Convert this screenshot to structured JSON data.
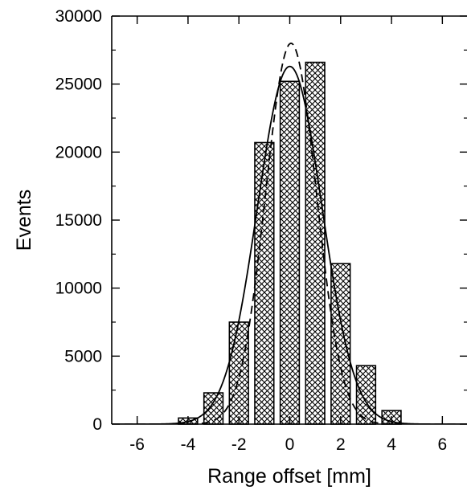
{
  "chart_data": {
    "type": "bar",
    "title": "",
    "xlabel": "Range offset [mm]",
    "ylabel": "Events",
    "xlim": [
      -7,
      7
    ],
    "ylim": [
      0,
      30000
    ],
    "xticks": [
      -6,
      -4,
      -2,
      0,
      2,
      4,
      6
    ],
    "xtick_labels": [
      "-6",
      "-4",
      "-2",
      "0",
      "2",
      "4",
      "6"
    ],
    "yticks": [
      0,
      5000,
      10000,
      15000,
      20000,
      25000,
      30000
    ],
    "ytick_labels": [
      "0",
      "5000",
      "10000",
      "15000",
      "20000",
      "25000",
      "30000"
    ],
    "bar_width": 0.75,
    "bars": {
      "x": [
        -4,
        -3,
        -2,
        -1,
        0,
        1,
        2,
        3,
        4
      ],
      "values": [
        450,
        2300,
        7500,
        20700,
        25200,
        26600,
        11800,
        4300,
        1000
      ],
      "fill": "crosshatch"
    },
    "curves": [
      {
        "style": "solid",
        "amplitude": 26300,
        "mean": 0.0,
        "sigma": 1.27
      },
      {
        "style": "dashed",
        "amplitude": 28000,
        "mean": 0.05,
        "sigma": 1.0
      }
    ],
    "grid": false,
    "legend": "none",
    "colors": {
      "line": "#000000",
      "background": "#ffffff",
      "hatch": "#000000"
    }
  }
}
